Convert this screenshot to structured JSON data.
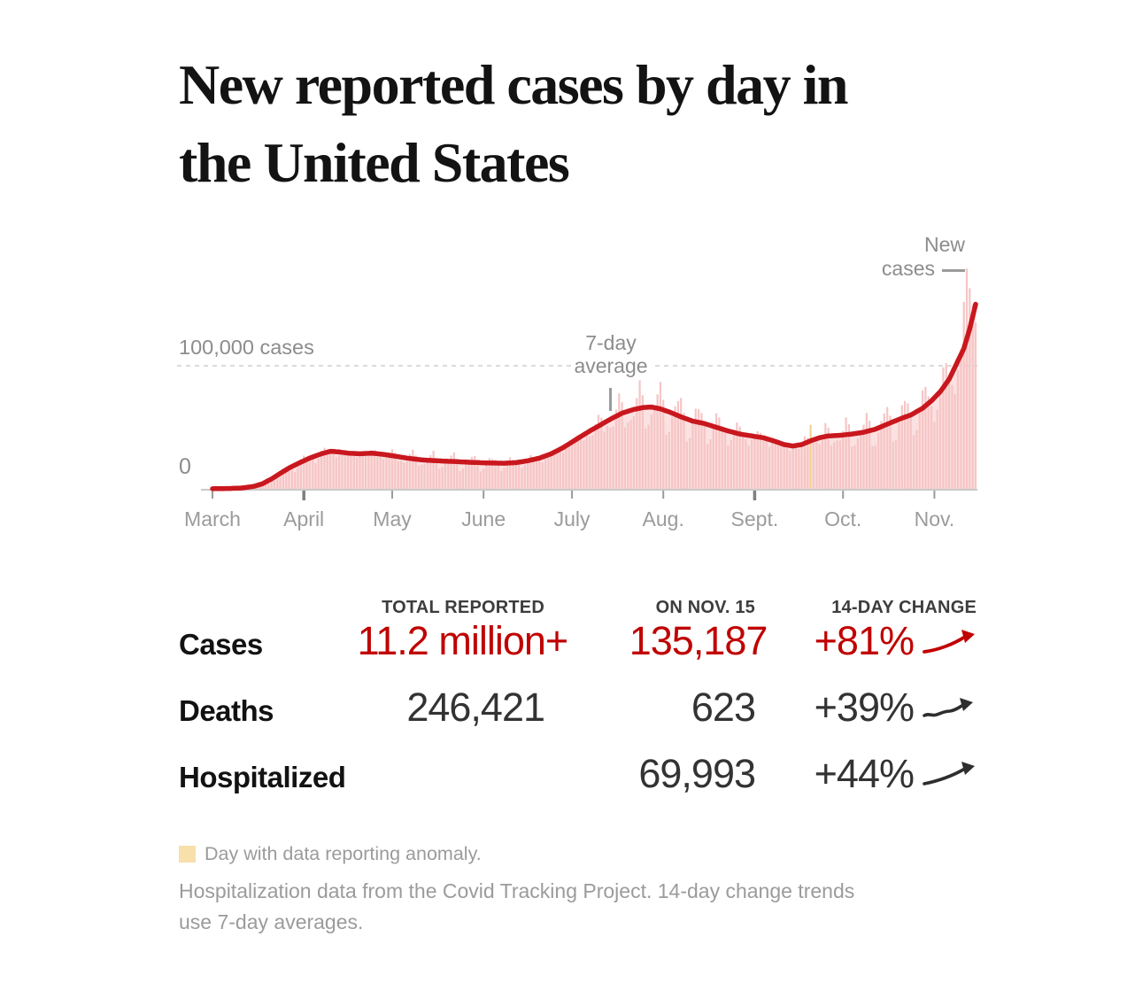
{
  "title": {
    "line1": "New reported cases by day in",
    "line2": "the United States"
  },
  "chart_data": {
    "type": "bar+line",
    "title": "New reported cases by day in the United States",
    "series_description": "Daily new reported Covid-19 cases (bars) with 7-day average (line), March 1 to Nov. 15, 2020",
    "days": 259,
    "x_start_date": "2020-03-01",
    "x_end_date": "2020-11-15",
    "months": [
      {
        "label": "March",
        "day": 0
      },
      {
        "label": "April",
        "day": 31,
        "major": true
      },
      {
        "label": "May",
        "day": 61
      },
      {
        "label": "June",
        "day": 92
      },
      {
        "label": "July",
        "day": 122
      },
      {
        "label": "Aug.",
        "day": 153
      },
      {
        "label": "Sept.",
        "day": 184,
        "major": true
      },
      {
        "label": "Oct.",
        "day": 214
      },
      {
        "label": "Nov.",
        "day": 245
      }
    ],
    "y_gridline": {
      "value": 100000,
      "label": "100,000 cases"
    },
    "y_zero_label": "0",
    "ylim": [
      0,
      185000
    ],
    "avg_keyframes": [
      [
        0,
        80
      ],
      [
        6,
        300
      ],
      [
        10,
        700
      ],
      [
        14,
        2000
      ],
      [
        17,
        4200
      ],
      [
        20,
        8000
      ],
      [
        23,
        12500
      ],
      [
        26,
        17000
      ],
      [
        29,
        20500
      ],
      [
        33,
        25000
      ],
      [
        37,
        28500
      ],
      [
        40,
        30500
      ],
      [
        43,
        30000
      ],
      [
        46,
        29000
      ],
      [
        50,
        28500
      ],
      [
        54,
        29000
      ],
      [
        58,
        28000
      ],
      [
        62,
        26500
      ],
      [
        66,
        25000
      ],
      [
        71,
        23500
      ],
      [
        76,
        22800
      ],
      [
        82,
        22200
      ],
      [
        88,
        21500
      ],
      [
        94,
        21000
      ],
      [
        99,
        20800
      ],
      [
        103,
        21300
      ],
      [
        107,
        22800
      ],
      [
        111,
        25000
      ],
      [
        115,
        28500
      ],
      [
        119,
        33500
      ],
      [
        123,
        39500
      ],
      [
        127,
        45500
      ],
      [
        131,
        51000
      ],
      [
        135,
        56500
      ],
      [
        139,
        61500
      ],
      [
        143,
        64500
      ],
      [
        146,
        66000
      ],
      [
        149,
        66500
      ],
      [
        152,
        65000
      ],
      [
        155,
        62500
      ],
      [
        159,
        58500
      ],
      [
        163,
        55000
      ],
      [
        167,
        53000
      ],
      [
        171,
        50000
      ],
      [
        175,
        47000
      ],
      [
        179,
        44500
      ],
      [
        183,
        43000
      ],
      [
        187,
        41500
      ],
      [
        191,
        38500
      ],
      [
        194,
        36000
      ],
      [
        197,
        34800
      ],
      [
        200,
        36000
      ],
      [
        203,
        39000
      ],
      [
        206,
        41500
      ],
      [
        209,
        43000
      ],
      [
        213,
        43500
      ],
      [
        217,
        44500
      ],
      [
        221,
        46000
      ],
      [
        225,
        48500
      ],
      [
        229,
        52500
      ],
      [
        233,
        56500
      ],
      [
        237,
        60000
      ],
      [
        241,
        65500
      ],
      [
        244,
        71500
      ],
      [
        247,
        79000
      ],
      [
        250,
        89000
      ],
      [
        253,
        104000
      ],
      [
        255,
        114000
      ],
      [
        257,
        130000
      ],
      [
        259,
        150000
      ]
    ],
    "weekday_factors": [
      0.78,
      0.86,
      0.97,
      1.05,
      1.12,
      1.16,
      1.05
    ],
    "anomaly_day": 203,
    "daily_overrides": {
      "203": 52000,
      "255": 152000,
      "256": 179000,
      "257": 163000,
      "258": 150000,
      "259": 135187
    },
    "annotations": {
      "new_cases_line1": "New",
      "new_cases_line2": "cases",
      "avg_line1": "7-day",
      "avg_line2": "average"
    },
    "colors": {
      "bar": "#f6c5c5",
      "bar_anomaly": "#f4cf92",
      "area": "#fbe1e1",
      "line": "#c9171e",
      "grid": "#cfcfcf",
      "axis": "#c9c9c9",
      "tick": "#9b9b9b",
      "tick_major": "#7f7f7f",
      "month_label": "#9b9b9b"
    }
  },
  "stats": {
    "headers": {
      "total": "TOTAL REPORTED",
      "on_date": "ON NOV. 15",
      "change": "14-DAY CHANGE"
    },
    "rows": [
      {
        "label": "Cases",
        "total": "11.2 million+",
        "on_date": "135,187",
        "change": "+81%"
      },
      {
        "label": "Deaths",
        "total": "246,421",
        "on_date": "623",
        "change": "+39%"
      },
      {
        "label": "Hospitalized",
        "total": "",
        "on_date": "69,993",
        "change": "+44%"
      }
    ]
  },
  "footer": {
    "anomaly_legend": "Day with data reporting anomaly.",
    "anomaly_color": "#f8e0ab",
    "note_line1": "Hospitalization data from the Covid Tracking Project. 14-day change trends",
    "note_line2": "use 7-day averages."
  }
}
